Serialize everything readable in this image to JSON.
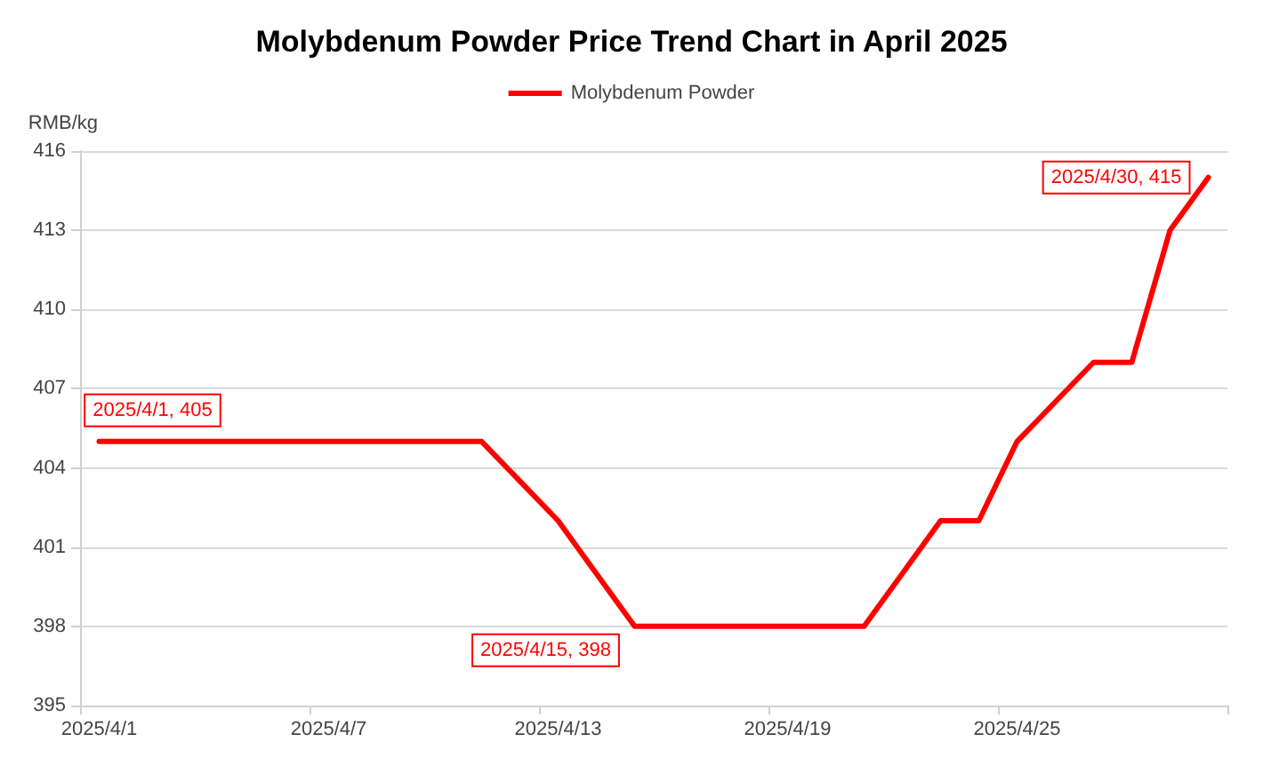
{
  "chart_data": {
    "type": "line",
    "title": "Molybdenum Powder Price Trend Chart in April 2025",
    "ylabel": "RMB/kg",
    "categories": [
      "2025/4/1",
      null,
      null,
      null,
      null,
      null,
      "2025/4/7",
      null,
      null,
      null,
      null,
      null,
      "2025/4/13",
      null,
      null,
      null,
      null,
      null,
      "2025/4/19",
      null,
      null,
      null,
      null,
      null,
      "2025/4/25",
      null,
      null,
      null,
      null,
      null
    ],
    "series": [
      {
        "name": "Molybdenum Powder",
        "color": "#ff0000",
        "values": [
          405,
          405,
          405,
          405,
          405,
          405,
          405,
          405,
          405,
          405,
          405,
          403.5,
          402,
          400,
          398,
          398,
          398,
          398,
          398,
          398,
          398,
          400,
          402,
          402,
          405,
          406.5,
          408,
          408,
          413,
          415
        ],
        "value_labels": [
          "2025/4/1, 405",
          null,
          null,
          null,
          null,
          null,
          null,
          null,
          null,
          null,
          null,
          null,
          null,
          null,
          "2025/4/15, 398",
          null,
          null,
          null,
          null,
          null,
          null,
          null,
          null,
          null,
          null,
          null,
          null,
          null,
          null,
          "2025/4/30, 415"
        ]
      }
    ],
    "ylim": [
      395,
      416
    ],
    "yticks": [
      395,
      398,
      401,
      404,
      407,
      410,
      413,
      416
    ],
    "grid": "y",
    "legend": "top",
    "marker": "none",
    "line_style": "solid"
  }
}
